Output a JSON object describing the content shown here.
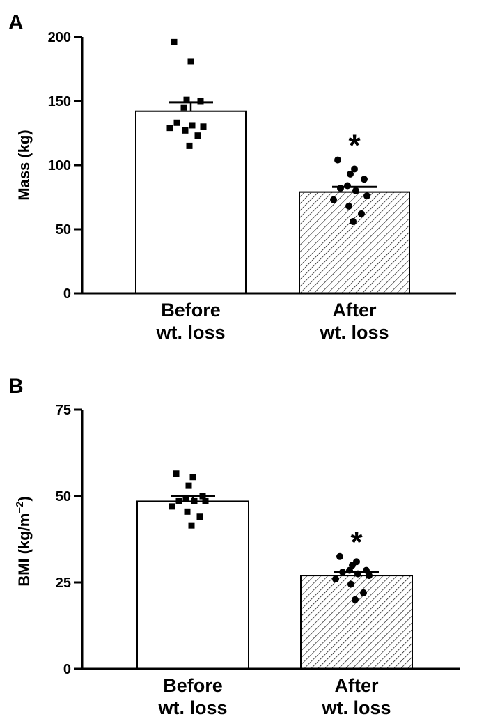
{
  "chart_data": [
    {
      "type": "bar",
      "panel": "A",
      "title": "",
      "ylabel": "Mass (kg)",
      "ylim": [
        0,
        200
      ],
      "yticks": [
        0,
        50,
        100,
        150,
        200
      ],
      "categories": [
        {
          "line1": "Before",
          "line2": "wt. loss"
        },
        {
          "line1": "After",
          "line2": "wt. loss"
        }
      ],
      "values": [
        142,
        79
      ],
      "error": [
        7,
        4
      ],
      "fills": [
        "white",
        "hatched"
      ],
      "points": [
        {
          "marker": "square",
          "values": [
            196,
            181,
            151,
            150,
            145,
            133,
            131,
            130,
            129,
            127,
            123,
            115
          ]
        },
        {
          "marker": "circle",
          "values": [
            104,
            97,
            93,
            89,
            84,
            82,
            80,
            76,
            73,
            68,
            62,
            56
          ]
        }
      ],
      "annotations": [
        {
          "category": 1,
          "text": "*"
        }
      ]
    },
    {
      "type": "bar",
      "panel": "B",
      "title": "",
      "ylabel": "BMI (kg/m",
      "ylabel_sup": "−2",
      "ylabel_end": ")",
      "ylim": [
        0,
        75
      ],
      "yticks": [
        0,
        25,
        50,
        75
      ],
      "categories": [
        {
          "line1": "Before",
          "line2": "wt. loss"
        },
        {
          "line1": "After",
          "line2": "wt. loss"
        }
      ],
      "values": [
        48.5,
        27
      ],
      "error": [
        1.5,
        1
      ],
      "fills": [
        "white",
        "hatched"
      ],
      "points": [
        {
          "marker": "square",
          "values": [
            56.5,
            55.5,
            53,
            50,
            49.5,
            48.5,
            48.5,
            48.5,
            47,
            45.5,
            44,
            41.5
          ]
        },
        {
          "marker": "circle",
          "values": [
            32.5,
            31,
            30,
            28.5,
            28.5,
            28,
            27.5,
            27,
            26,
            24.5,
            22,
            20
          ]
        }
      ],
      "annotations": [
        {
          "category": 1,
          "text": "*"
        }
      ]
    }
  ]
}
